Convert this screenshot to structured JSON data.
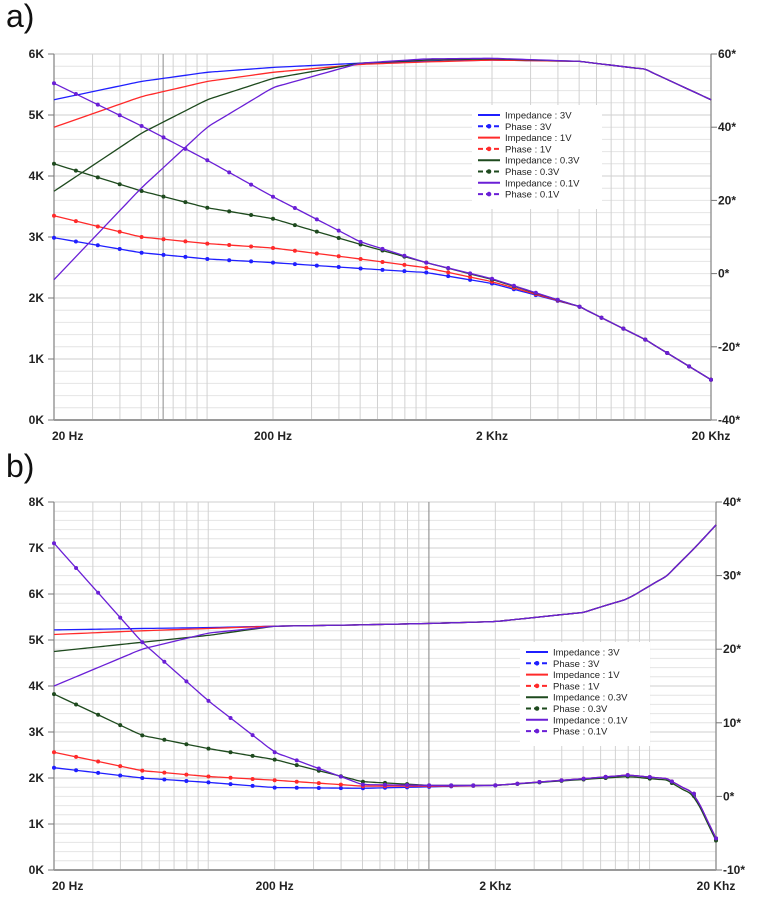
{
  "chart_data": [
    {
      "type": "line",
      "panel_label": "a)",
      "xscale": "log",
      "xlim": [
        20,
        20000
      ],
      "x_ticks": [
        {
          "value": 20,
          "label": "20 Hz"
        },
        {
          "value": 200,
          "label": "200 Hz"
        },
        {
          "value": 2000,
          "label": "2 Khz"
        },
        {
          "value": 20000,
          "label": "20 Khz"
        }
      ],
      "highlight_vline": 63,
      "ylim_left": [
        0,
        6
      ],
      "y_ticks_left": [
        {
          "value": 0,
          "label": "0K"
        },
        {
          "value": 1,
          "label": "1K"
        },
        {
          "value": 2,
          "label": "2K"
        },
        {
          "value": 3,
          "label": "3K"
        },
        {
          "value": 4,
          "label": "4K"
        },
        {
          "value": 5,
          "label": "5K"
        },
        {
          "value": 6,
          "label": "6K"
        }
      ],
      "ylim_right": [
        -40,
        60
      ],
      "y_ticks_right": [
        {
          "value": -40,
          "label": "-40*"
        },
        {
          "value": -20,
          "label": "-20*"
        },
        {
          "value": 0,
          "label": "0*"
        },
        {
          "value": 20,
          "label": "20*"
        },
        {
          "value": 40,
          "label": "40*"
        },
        {
          "value": 60,
          "label": "60*"
        }
      ],
      "legend_position": "center-right",
      "x": [
        20,
        50,
        100,
        200,
        500,
        1000,
        2000,
        5000,
        10000,
        20000
      ],
      "series": [
        {
          "name": "Impedance : 3V",
          "axis": "left",
          "style": "solid",
          "color": "#1f1fff",
          "values": [
            5.25,
            5.55,
            5.7,
            5.78,
            5.85,
            5.88,
            5.9,
            5.88,
            5.75,
            5.25
          ]
        },
        {
          "name": "Phase : 3V",
          "axis": "right",
          "style": "dot-marker",
          "color": "#1f1fff",
          "values": [
            9.8,
            5.7,
            4.0,
            3.0,
            1.4,
            0.3,
            -2.7,
            -9,
            -18,
            -29
          ]
        },
        {
          "name": "Impedance : 1V",
          "axis": "left",
          "style": "solid",
          "color": "#ff2a2a",
          "values": [
            4.8,
            5.3,
            5.55,
            5.7,
            5.83,
            5.87,
            5.9,
            5.88,
            5.75,
            5.25
          ]
        },
        {
          "name": "Phase : 1V",
          "axis": "right",
          "style": "dot-marker",
          "color": "#ff2a2a",
          "values": [
            15.8,
            10.0,
            8.2,
            7.0,
            4.0,
            1.6,
            -2.2,
            -9,
            -18,
            -29
          ]
        },
        {
          "name": "Impedance : 0.3V",
          "axis": "left",
          "style": "solid",
          "color": "#1e4a1e",
          "values": [
            3.75,
            4.7,
            5.25,
            5.6,
            5.85,
            5.9,
            5.92,
            5.88,
            5.75,
            5.25
          ]
        },
        {
          "name": "Phase : 0.3V",
          "axis": "right",
          "style": "dot-marker",
          "color": "#1e4a1e",
          "values": [
            30,
            22.6,
            18,
            15,
            8,
            3,
            -1.6,
            -9,
            -18,
            -29
          ]
        },
        {
          "name": "Impedance : 0.1V",
          "axis": "left",
          "style": "solid",
          "color": "#6a1fd6",
          "values": [
            2.3,
            3.8,
            4.8,
            5.45,
            5.85,
            5.92,
            5.93,
            5.88,
            5.75,
            5.25
          ]
        },
        {
          "name": "Phase : 0.1V",
          "axis": "right",
          "style": "dot-marker",
          "color": "#6a1fd6",
          "values": [
            52,
            40.4,
            31,
            21,
            8.7,
            3,
            -1.4,
            -9,
            -18,
            -29
          ]
        }
      ]
    },
    {
      "type": "line",
      "panel_label": "b)",
      "xscale": "log",
      "xlim": [
        20,
        20000
      ],
      "x_ticks": [
        {
          "value": 20,
          "label": "20 Hz"
        },
        {
          "value": 200,
          "label": "200 Hz"
        },
        {
          "value": 2000,
          "label": "2 Khz"
        },
        {
          "value": 20000,
          "label": "20 Khz"
        }
      ],
      "highlight_vline": 1000,
      "ylim_left": [
        0,
        8
      ],
      "y_ticks_left": [
        {
          "value": 0,
          "label": "0K"
        },
        {
          "value": 1,
          "label": "1K"
        },
        {
          "value": 2,
          "label": "2K"
        },
        {
          "value": 3,
          "label": "3K"
        },
        {
          "value": 4,
          "label": "4K"
        },
        {
          "value": 5,
          "label": "5K"
        },
        {
          "value": 6,
          "label": "6K"
        },
        {
          "value": 7,
          "label": "7K"
        },
        {
          "value": 8,
          "label": "8K"
        }
      ],
      "ylim_right": [
        -10,
        40
      ],
      "y_ticks_right": [
        {
          "value": -10,
          "label": "-10*"
        },
        {
          "value": 0,
          "label": "0*"
        },
        {
          "value": 10,
          "label": "10*"
        },
        {
          "value": 20,
          "label": "20*"
        },
        {
          "value": 30,
          "label": "30*"
        },
        {
          "value": 40,
          "label": "40*"
        }
      ],
      "legend_position": "center-right",
      "x": [
        20,
        50,
        100,
        200,
        500,
        1000,
        2000,
        5000,
        8000,
        12000,
        16000,
        20000
      ],
      "series": [
        {
          "name": "Impedance : 3V",
          "axis": "left",
          "style": "solid",
          "color": "#1f1fff",
          "values": [
            5.22,
            5.25,
            5.27,
            5.3,
            5.33,
            5.36,
            5.4,
            5.6,
            5.9,
            6.4,
            7.0,
            7.5
          ]
        },
        {
          "name": "Phase : 3V",
          "axis": "right",
          "style": "dot-marker",
          "color": "#1f1fff",
          "values": [
            3.9,
            2.5,
            1.9,
            1.2,
            1.1,
            1.3,
            1.5,
            2.4,
            2.9,
            2.4,
            0.3,
            -5.7
          ]
        },
        {
          "name": "Impedance : 1V",
          "axis": "left",
          "style": "solid",
          "color": "#ff2a2a",
          "values": [
            5.12,
            5.2,
            5.25,
            5.3,
            5.33,
            5.36,
            5.4,
            5.6,
            5.9,
            6.4,
            7.0,
            7.5
          ]
        },
        {
          "name": "Phase : 1V",
          "axis": "right",
          "style": "dot-marker",
          "color": "#ff2a2a",
          "values": [
            6.0,
            3.5,
            2.7,
            2.2,
            1.4,
            1.4,
            1.5,
            2.4,
            2.9,
            2.4,
            0.3,
            -5.7
          ]
        },
        {
          "name": "Impedance : 0.3V",
          "axis": "left",
          "style": "solid",
          "color": "#1e4a1e",
          "values": [
            4.75,
            4.95,
            5.1,
            5.3,
            5.33,
            5.36,
            5.4,
            5.6,
            5.9,
            6.4,
            7.0,
            7.5
          ]
        },
        {
          "name": "Phase : 0.3V",
          "axis": "right",
          "style": "dot-marker",
          "color": "#1e4a1e",
          "values": [
            13.9,
            8.3,
            6.5,
            5.0,
            2.0,
            1.5,
            1.5,
            2.3,
            2.7,
            2.2,
            0.0,
            -6.0
          ]
        },
        {
          "name": "Impedance : 0.1V",
          "axis": "left",
          "style": "solid",
          "color": "#6a1fd6",
          "values": [
            4.0,
            4.8,
            5.15,
            5.3,
            5.33,
            5.36,
            5.4,
            5.6,
            5.9,
            6.4,
            7.0,
            7.5
          ]
        },
        {
          "name": "Phase : 0.1V",
          "axis": "right",
          "style": "dot-marker",
          "color": "#6a1fd6",
          "values": [
            34.4,
            21,
            13,
            6,
            1.6,
            1.5,
            1.5,
            2.4,
            2.9,
            2.4,
            0.3,
            -5.7
          ]
        }
      ]
    }
  ]
}
